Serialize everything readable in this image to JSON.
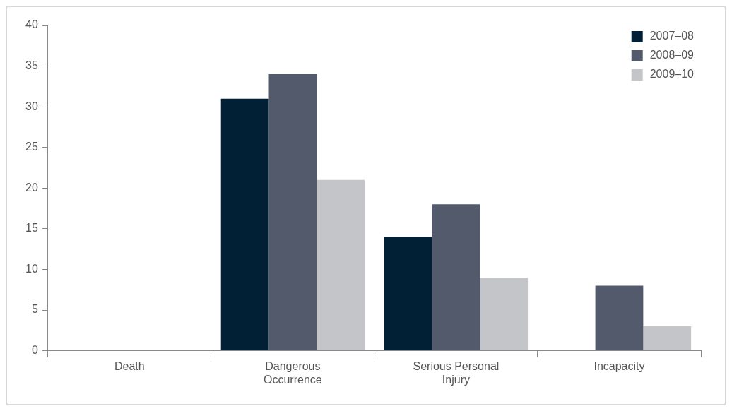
{
  "chart_data": {
    "type": "bar",
    "categories": [
      "Death",
      "Dangerous Occurrence",
      "Serious Personal Injury",
      "Incapacity"
    ],
    "series": [
      {
        "name": "2007–08",
        "color": "#011f35",
        "values": [
          0,
          31,
          14,
          0
        ]
      },
      {
        "name": "2008–09",
        "color": "#525a6b",
        "values": [
          0,
          34,
          18,
          8
        ]
      },
      {
        "name": "2009–10",
        "color": "#c4c5c9",
        "values": [
          0,
          21,
          9,
          3
        ]
      }
    ],
    "ylim": [
      0,
      40
    ],
    "yticks": [
      0,
      5,
      10,
      15,
      20,
      25,
      30,
      35,
      40
    ],
    "grid": false,
    "legend": "top right"
  }
}
